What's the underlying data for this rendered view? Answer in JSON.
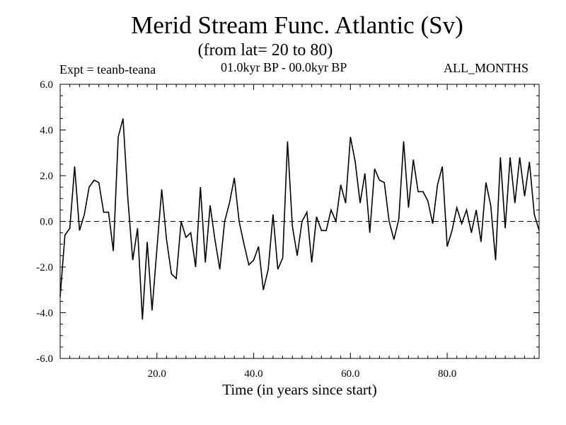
{
  "chart_data": {
    "type": "line",
    "title": "Merid Stream Func. Atlantic (Sv)",
    "subtitle": "(from lat= 20 to 80)",
    "expt_label": "Expt = teanb-teana",
    "period_label": "01.0kyr BP - 00.0kyr BP",
    "months_label": "ALL_MONTHS",
    "xlabel": "Time (in years since start)",
    "ylabel": "",
    "xlim": [
      0,
      99
    ],
    "ylim": [
      -6,
      6
    ],
    "xticks": [
      20,
      40,
      60,
      80
    ],
    "xtick_labels": [
      "20.0",
      "40.0",
      "60.0",
      "80.0"
    ],
    "yticks": [
      -6,
      -4,
      -2,
      0,
      2,
      4,
      6
    ],
    "ytick_labels": [
      "-6.0",
      "-4.0",
      "-2.0",
      "0.0",
      "2.0",
      "4.0",
      "6.0"
    ],
    "zero_line": "dashed",
    "series": [
      {
        "name": "Merid Stream Func.",
        "x": [
          0,
          1,
          2,
          3,
          4,
          5,
          6,
          7,
          8,
          9,
          10,
          11,
          12,
          13,
          14,
          15,
          16,
          17,
          18,
          19,
          20,
          21,
          22,
          23,
          24,
          25,
          26,
          27,
          28,
          29,
          30,
          31,
          32,
          33,
          34,
          35,
          36,
          37,
          38,
          39,
          40,
          41,
          42,
          43,
          44,
          45,
          46,
          47,
          48,
          49,
          50,
          51,
          52,
          53,
          54,
          55,
          56,
          57,
          58,
          59,
          60,
          61,
          62,
          63,
          64,
          65,
          66,
          67,
          68,
          69,
          70,
          71,
          72,
          73,
          74,
          75,
          76,
          77,
          78,
          79,
          80,
          81,
          82,
          83,
          84,
          85,
          86,
          87,
          88,
          89,
          90,
          91,
          92,
          93,
          94,
          95,
          96,
          97,
          98,
          99
        ],
        "values": [
          -3.3,
          -0.6,
          -0.3,
          2.4,
          -0.4,
          0.3,
          1.5,
          1.8,
          1.7,
          0.4,
          0.4,
          -1.3,
          3.7,
          4.5,
          1.0,
          -1.7,
          -0.3,
          -4.3,
          -0.9,
          -3.9,
          -1.2,
          1.4,
          -0.8,
          -2.3,
          -2.5,
          0.0,
          -0.7,
          -0.5,
          -2.0,
          1.5,
          -1.8,
          0.7,
          -0.8,
          -2.1,
          0.0,
          0.8,
          1.9,
          0.0,
          -1.0,
          -1.9,
          -1.7,
          -1.1,
          -3.0,
          -2.1,
          0.3,
          -2.1,
          -1.6,
          3.5,
          -0.2,
          -1.5,
          0.0,
          0.4,
          -1.8,
          0.2,
          -0.4,
          -0.4,
          0.5,
          0.0,
          1.6,
          0.8,
          3.7,
          2.6,
          0.8,
          2.1,
          -0.5,
          2.3,
          1.8,
          1.7,
          0.0,
          -0.8,
          0.1,
          3.5,
          0.6,
          2.7,
          1.3,
          1.3,
          0.9,
          -0.1,
          1.6,
          2.4,
          -1.1,
          -0.4,
          0.6,
          -0.1,
          0.5,
          -0.5,
          0.5,
          -0.9,
          1.7,
          0.7,
          -1.7,
          2.8,
          -0.3,
          2.8,
          0.8,
          2.8,
          1.1,
          2.6,
          0.3,
          -0.4
        ]
      }
    ]
  }
}
